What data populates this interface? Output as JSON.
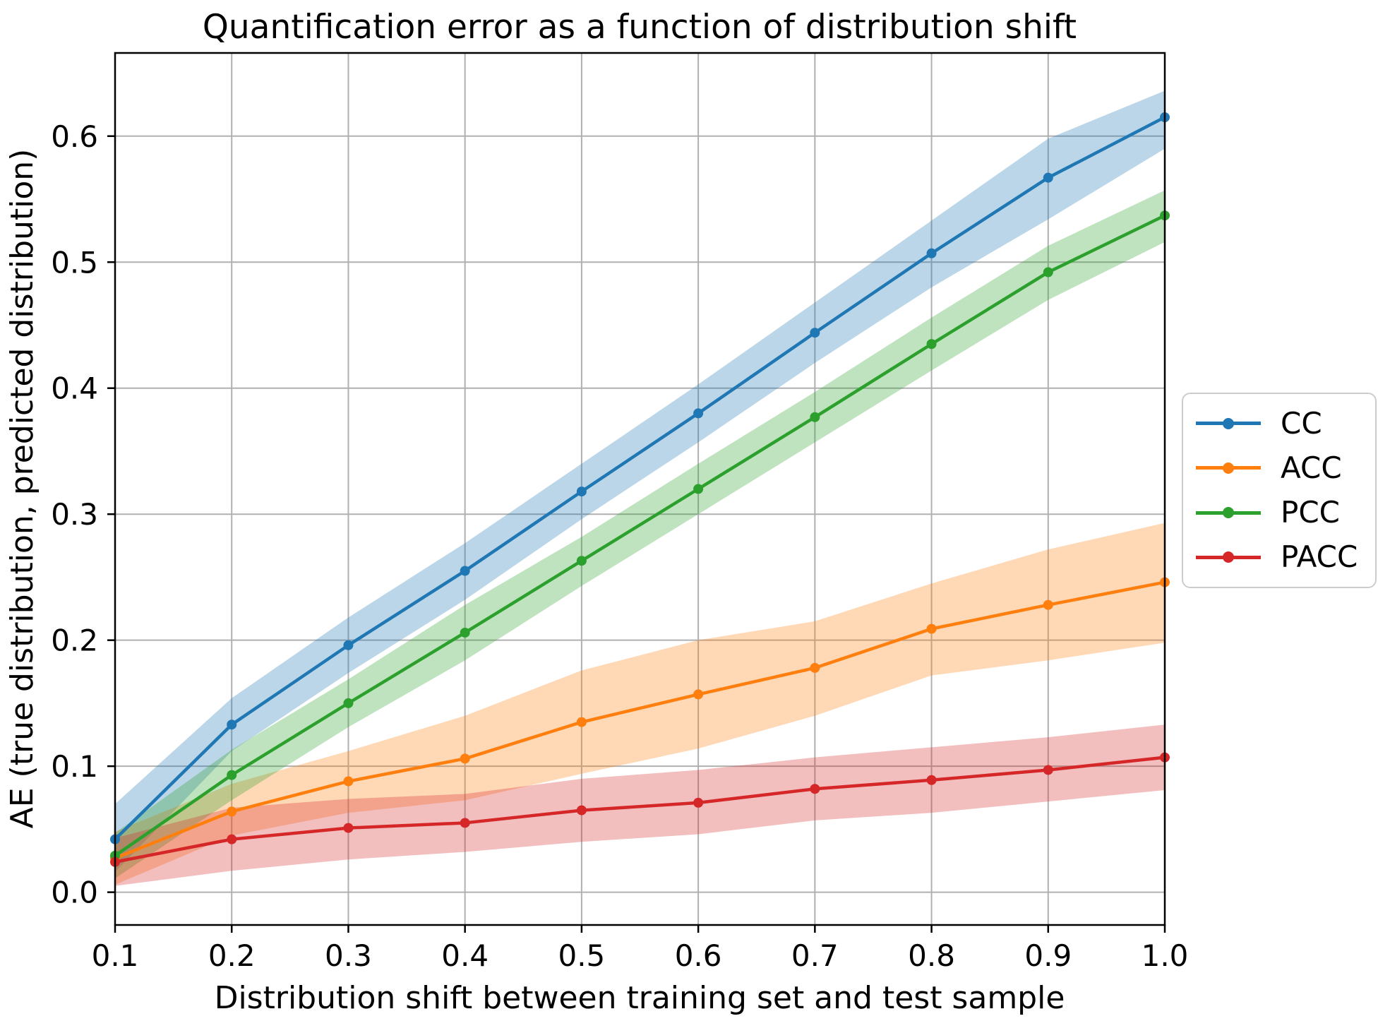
{
  "figure": {
    "title": "Quantification error as a function of distribution shift",
    "xlabel": "Distribution shift between training set and test sample",
    "ylabel": "AE (true distribution, predicted distribution)"
  },
  "chart_data": {
    "type": "line",
    "title": "Quantification error as a function of distribution shift",
    "xlabel": "Distribution shift between training set and test sample",
    "ylabel": "AE (true distribution, predicted distribution)",
    "grid": true,
    "legend_position": "center right, outside axes",
    "x": [
      0.1,
      0.2,
      0.3,
      0.4,
      0.5,
      0.6,
      0.7,
      0.8,
      0.9,
      1.0
    ],
    "xlim": [
      0.1,
      1.0
    ],
    "ylim": [
      -0.026,
      0.666
    ],
    "xticks": [
      "0.1",
      "0.2",
      "0.3",
      "0.4",
      "0.5",
      "0.6",
      "0.7",
      "0.8",
      "0.9",
      "1.0"
    ],
    "yticks": [
      "0.0",
      "0.1",
      "0.2",
      "0.3",
      "0.4",
      "0.5",
      "0.6"
    ],
    "grid_color": "#b0b0b0",
    "band_opacity": 0.3,
    "series": [
      {
        "name": "CC",
        "color": "#1f77b4",
        "values": [
          0.042,
          0.133,
          0.196,
          0.255,
          0.318,
          0.38,
          0.444,
          0.507,
          0.567,
          0.615
        ],
        "band_lower": [
          0.016,
          0.112,
          0.174,
          0.232,
          0.296,
          0.357,
          0.42,
          0.48,
          0.534,
          0.59
        ],
        "band_upper": [
          0.07,
          0.154,
          0.218,
          0.277,
          0.34,
          0.403,
          0.468,
          0.533,
          0.598,
          0.636
        ]
      },
      {
        "name": "ACC",
        "color": "#ff7f0e",
        "values": [
          0.027,
          0.064,
          0.088,
          0.106,
          0.135,
          0.157,
          0.178,
          0.209,
          0.228,
          0.246
        ],
        "band_lower": [
          0.006,
          0.045,
          0.063,
          0.073,
          0.094,
          0.114,
          0.14,
          0.172,
          0.184,
          0.198
        ],
        "band_upper": [
          0.048,
          0.086,
          0.112,
          0.14,
          0.176,
          0.2,
          0.215,
          0.245,
          0.272,
          0.293
        ]
      },
      {
        "name": "PCC",
        "color": "#2ca02c",
        "values": [
          0.029,
          0.093,
          0.15,
          0.206,
          0.263,
          0.32,
          0.377,
          0.435,
          0.492,
          0.537
        ],
        "band_lower": [
          0.011,
          0.073,
          0.131,
          0.184,
          0.243,
          0.3,
          0.357,
          0.414,
          0.47,
          0.516
        ],
        "band_upper": [
          0.047,
          0.113,
          0.169,
          0.228,
          0.282,
          0.34,
          0.397,
          0.456,
          0.513,
          0.557
        ]
      },
      {
        "name": "PACC",
        "color": "#d62728",
        "values": [
          0.024,
          0.042,
          0.051,
          0.055,
          0.065,
          0.071,
          0.082,
          0.089,
          0.097,
          0.107
        ],
        "band_lower": [
          0.005,
          0.017,
          0.026,
          0.032,
          0.04,
          0.046,
          0.057,
          0.063,
          0.072,
          0.081
        ],
        "band_upper": [
          0.043,
          0.067,
          0.074,
          0.078,
          0.09,
          0.097,
          0.107,
          0.115,
          0.123,
          0.133
        ]
      }
    ]
  },
  "legend": {
    "entries": [
      {
        "label": "CC",
        "color": "#1f77b4"
      },
      {
        "label": "ACC",
        "color": "#ff7f0e"
      },
      {
        "label": "PCC",
        "color": "#2ca02c"
      },
      {
        "label": "PACC",
        "color": "#d62728"
      }
    ]
  }
}
